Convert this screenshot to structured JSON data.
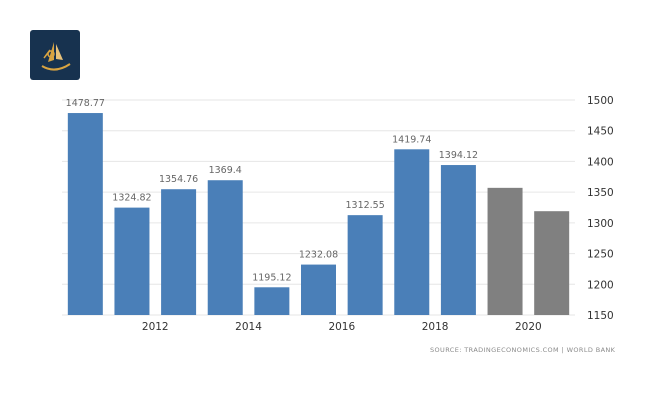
{
  "logo": {
    "icon": "sailboat-logo-icon",
    "bg_color": "#17324f",
    "accent_color": "#d9a441"
  },
  "chart_data": {
    "type": "bar",
    "x": [
      2011,
      2012,
      2013,
      2014,
      2015,
      2016,
      2017,
      2018,
      2019,
      2020,
      2021
    ],
    "values": [
      1478.77,
      1324.82,
      1354.76,
      1369.4,
      1195.12,
      1232.08,
      1312.55,
      1419.74,
      1394.12,
      1357,
      1319
    ],
    "data_labels": [
      "1478.77",
      "1324.82",
      "1354.76",
      "1369.4",
      "1195.12",
      "1232.08",
      "1312.55",
      "1419.74",
      "1394.12",
      "",
      ""
    ],
    "xtick_labels": [
      "2012",
      "2014",
      "2016",
      "2018",
      "2020"
    ],
    "xtick_values": [
      2012,
      2014,
      2016,
      2018,
      2020
    ],
    "ytick_labels": [
      "1500",
      "1450",
      "1400",
      "1350",
      "1300",
      "1250",
      "1200",
      "1150"
    ],
    "ytick_values": [
      1500,
      1450,
      1400,
      1350,
      1300,
      1250,
      1200,
      1150
    ],
    "ylim": [
      1150,
      1500
    ],
    "y_axis_position": "right",
    "grid": true,
    "title": "",
    "xlabel": "",
    "ylabel": "",
    "colors": {
      "actual": "#4a7fb8",
      "forecast": "#808080",
      "grid": "#e6e6e6",
      "label": "#666666"
    },
    "forecast_from_index": 9
  },
  "source": "SOURCE: TRADINGECONOMICS.COM | WORLD BANK"
}
